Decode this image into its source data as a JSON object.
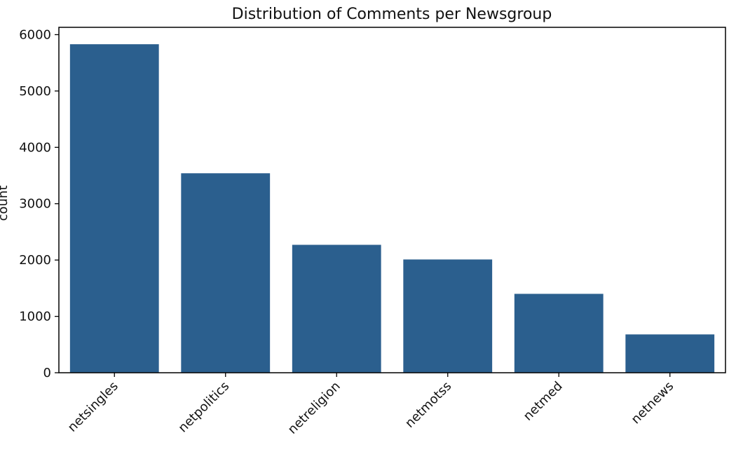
{
  "chart_data": {
    "type": "bar",
    "title": "Distribution of Comments per Newsgroup",
    "xlabel": "",
    "ylabel": "count",
    "categories": [
      "netsingles",
      "netpolitics",
      "netreligion",
      "netmotss",
      "netmed",
      "netnews"
    ],
    "values": [
      5830,
      3540,
      2270,
      2010,
      1400,
      680
    ],
    "ylim": [
      0,
      6130
    ],
    "yticks": [
      0,
      1000,
      2000,
      3000,
      4000,
      5000,
      6000
    ],
    "bar_color": "#2b5f8e",
    "grid": false,
    "legend": "none"
  }
}
